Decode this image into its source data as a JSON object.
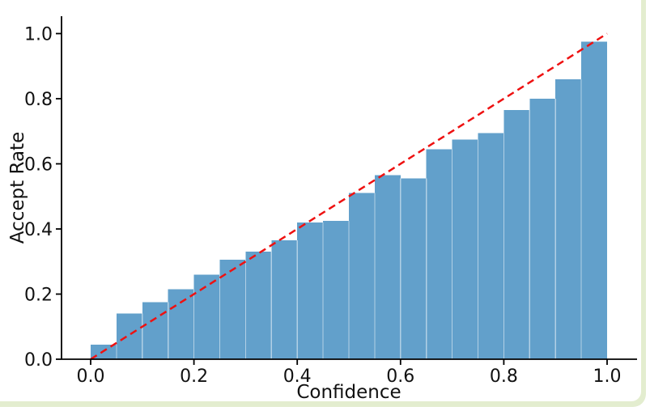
{
  "page": {
    "background": "#ffffff",
    "edge_color": "#e3edcf"
  },
  "chart_data": {
    "type": "bar",
    "subtype": "calibration-histogram",
    "title": "",
    "xlabel": "Confidence",
    "ylabel": "Accept Rate",
    "xlim": [
      -0.056,
      1.058
    ],
    "ylim": [
      0,
      1.053
    ],
    "xticks": [
      "0.0",
      "0.2",
      "0.4",
      "0.6",
      "0.8",
      "1.0"
    ],
    "yticks": [
      "0.0",
      "0.2",
      "0.4",
      "0.6",
      "0.8",
      "1.0"
    ],
    "xtick_values": [
      0,
      0.2,
      0.4,
      0.6,
      0.8,
      1.0
    ],
    "ytick_values": [
      0,
      0.2,
      0.4,
      0.6,
      0.8,
      1.0
    ],
    "bin_width": 0.05,
    "bin_edges": [
      0,
      0.05,
      0.1,
      0.15,
      0.2,
      0.25,
      0.3,
      0.35,
      0.4,
      0.45,
      0.5,
      0.55,
      0.6,
      0.65,
      0.7,
      0.75,
      0.8,
      0.85,
      0.9,
      0.95,
      1.0
    ],
    "values": [
      0.045,
      0.14,
      0.175,
      0.215,
      0.26,
      0.305,
      0.33,
      0.365,
      0.42,
      0.425,
      0.51,
      0.565,
      0.555,
      0.645,
      0.675,
      0.695,
      0.765,
      0.8,
      0.86,
      0.975
    ],
    "bar_color": "#62a0cb",
    "bar_edge_color": "rgba(255,255,255,0.5)",
    "reference_line": {
      "from": [
        0,
        0
      ],
      "to": [
        1,
        1
      ],
      "color": "#ee1111",
      "style": "dashed"
    },
    "grid": false,
    "legend": null,
    "spine_color": "#000000"
  }
}
